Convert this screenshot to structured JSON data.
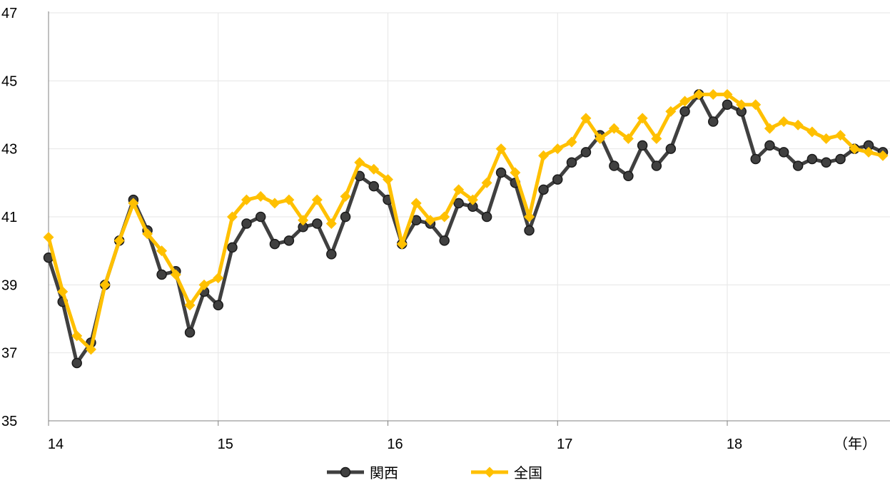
{
  "chart_data": {
    "type": "line",
    "title": "",
    "xlabel": "",
    "ylabel": "",
    "x_unit_label": "（年）",
    "x_tick_labels": [
      "14",
      "15",
      "16",
      "17",
      "18"
    ],
    "y_tick_labels": [
      "35",
      "37",
      "39",
      "41",
      "43",
      "45",
      "47"
    ],
    "ylim": [
      35,
      47
    ],
    "xlim": [
      2014.0,
      2018.917
    ],
    "grid": true,
    "legend_position": "bottom-center",
    "x": [
      2014.0,
      2014.083,
      2014.167,
      2014.25,
      2014.333,
      2014.417,
      2014.5,
      2014.583,
      2014.667,
      2014.75,
      2014.833,
      2014.917,
      2015.0,
      2015.083,
      2015.167,
      2015.25,
      2015.333,
      2015.417,
      2015.5,
      2015.583,
      2015.667,
      2015.75,
      2015.833,
      2015.917,
      2016.0,
      2016.083,
      2016.167,
      2016.25,
      2016.333,
      2016.417,
      2016.5,
      2016.583,
      2016.667,
      2016.75,
      2016.833,
      2016.917,
      2017.0,
      2017.083,
      2017.167,
      2017.25,
      2017.333,
      2017.417,
      2017.5,
      2017.583,
      2017.667,
      2017.75,
      2017.833,
      2017.917,
      2018.0,
      2018.083,
      2018.167,
      2018.25,
      2018.333,
      2018.417,
      2018.5,
      2018.583,
      2018.667,
      2018.75,
      2018.833,
      2018.917
    ],
    "series": [
      {
        "name": "関西",
        "color": "#404040",
        "marker": "circle",
        "values": [
          39.8,
          38.5,
          36.7,
          37.3,
          39.0,
          40.3,
          41.5,
          40.6,
          39.3,
          39.4,
          37.6,
          38.8,
          38.4,
          40.1,
          40.8,
          41.0,
          40.2,
          40.3,
          40.7,
          40.8,
          39.9,
          41.0,
          42.2,
          41.9,
          41.5,
          40.2,
          40.9,
          40.8,
          40.3,
          41.4,
          41.3,
          41.0,
          42.3,
          42.0,
          40.6,
          41.8,
          42.1,
          42.6,
          42.9,
          43.4,
          42.5,
          42.2,
          43.1,
          42.5,
          43.0,
          44.1,
          44.6,
          43.8,
          44.3,
          44.1,
          42.7,
          43.1,
          42.9,
          42.5,
          42.7,
          42.6,
          42.7,
          43.0,
          43.1,
          42.9
        ]
      },
      {
        "name": "全国",
        "color": "#FFC000",
        "marker": "diamond",
        "values": [
          40.4,
          38.8,
          37.5,
          37.1,
          39.0,
          40.3,
          41.4,
          40.5,
          40.0,
          39.3,
          38.4,
          39.0,
          39.2,
          41.0,
          41.5,
          41.6,
          41.4,
          41.5,
          40.9,
          41.5,
          40.8,
          41.6,
          42.6,
          42.4,
          42.1,
          40.2,
          41.4,
          40.9,
          41.0,
          41.8,
          41.5,
          42.0,
          43.0,
          42.3,
          41.0,
          42.8,
          43.0,
          43.2,
          43.9,
          43.3,
          43.6,
          43.3,
          43.9,
          43.3,
          44.1,
          44.4,
          44.6,
          44.6,
          44.6,
          44.3,
          44.3,
          43.6,
          43.8,
          43.7,
          43.5,
          43.3,
          43.4,
          43.0,
          42.9,
          42.8
        ]
      }
    ]
  }
}
